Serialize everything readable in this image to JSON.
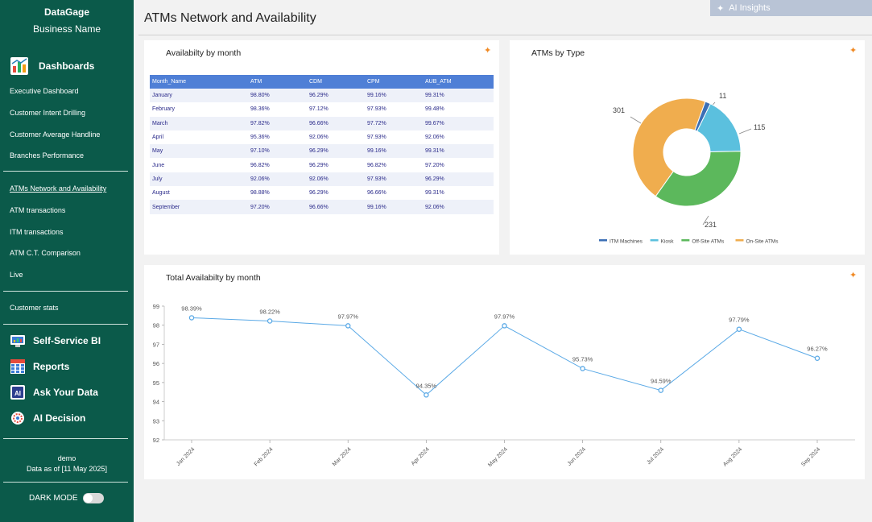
{
  "sidebar": {
    "app_name": "DataGage",
    "business_name": "Business Name",
    "dashboards_label": "Dashboards",
    "items": [
      {
        "label": "Executive Dashboard"
      },
      {
        "label": "Customer Intent Drilling"
      },
      {
        "label": "Customer Average Handline"
      },
      {
        "label": "Branches Performance"
      },
      {
        "label": "ATMs Network and Availability"
      },
      {
        "label": "ATM transactions"
      },
      {
        "label": "ITM transactions"
      },
      {
        "label": "ATM C.T. Comparison"
      },
      {
        "label": "Live"
      },
      {
        "label": "Customer stats"
      }
    ],
    "sections": [
      {
        "label": "Self-Service BI"
      },
      {
        "label": "Reports"
      },
      {
        "label": "Ask Your Data"
      },
      {
        "label": "AI Decision"
      }
    ],
    "user": "demo",
    "data_as_of": "Data as of [11 May 2025]",
    "dark_mode_label": "DARK MODE"
  },
  "header": {
    "title": "ATMs Network and Availability",
    "ai_insights_label": "AI Insights"
  },
  "availability_table": {
    "title": "Availabilty by month",
    "columns": [
      "Month_Name",
      "ATM",
      "CDM",
      "CPM",
      "AUB_ATM"
    ],
    "rows": [
      [
        "January",
        "98.80%",
        "96.29%",
        "99.16%",
        "99.31%"
      ],
      [
        "February",
        "98.36%",
        "97.12%",
        "97.93%",
        "99.48%"
      ],
      [
        "March",
        "97.82%",
        "96.66%",
        "97.72%",
        "99.67%"
      ],
      [
        "April",
        "95.36%",
        "92.06%",
        "97.93%",
        "92.06%"
      ],
      [
        "May",
        "97.10%",
        "96.29%",
        "99.16%",
        "99.31%"
      ],
      [
        "June",
        "96.82%",
        "96.29%",
        "96.82%",
        "97.20%"
      ],
      [
        "July",
        "92.06%",
        "92.06%",
        "97.93%",
        "96.29%"
      ],
      [
        "August",
        "98.88%",
        "96.29%",
        "96.66%",
        "99.31%"
      ],
      [
        "September",
        "97.20%",
        "96.66%",
        "99.16%",
        "92.06%"
      ]
    ]
  },
  "chart_data": [
    {
      "type": "pie",
      "title": "ATMs by Type",
      "categories": [
        "ITM Machines",
        "Kiosk",
        "Off-Site ATMs",
        "On-Site ATMs"
      ],
      "values": [
        11,
        115,
        231,
        301
      ],
      "colors": [
        "#3b6fb5",
        "#5bc0de",
        "#5cb85c",
        "#f0ad4e"
      ],
      "donut": true,
      "legend": "bottom"
    },
    {
      "type": "line",
      "title": "Total Availabilty by month",
      "x": [
        "Jan 2024",
        "Feb 2024",
        "Mar 2024",
        "Apr 2024",
        "May 2024",
        "Jun 2024",
        "Jul 2024",
        "Aug 2024",
        "Sep 2024"
      ],
      "values": [
        98.39,
        98.22,
        97.97,
        94.35,
        97.97,
        95.73,
        94.59,
        97.79,
        96.27
      ],
      "labels": [
        "98.39%",
        "98.22%",
        "97.97%",
        "94.35%",
        "97.97%",
        "95.73%",
        "94.59%",
        "97.79%",
        "96.27%"
      ],
      "ylim": [
        92,
        99
      ],
      "yticks": [
        92,
        93,
        94,
        95,
        96,
        97,
        98,
        99
      ],
      "color": "#5aa9e6",
      "grid": false
    }
  ]
}
